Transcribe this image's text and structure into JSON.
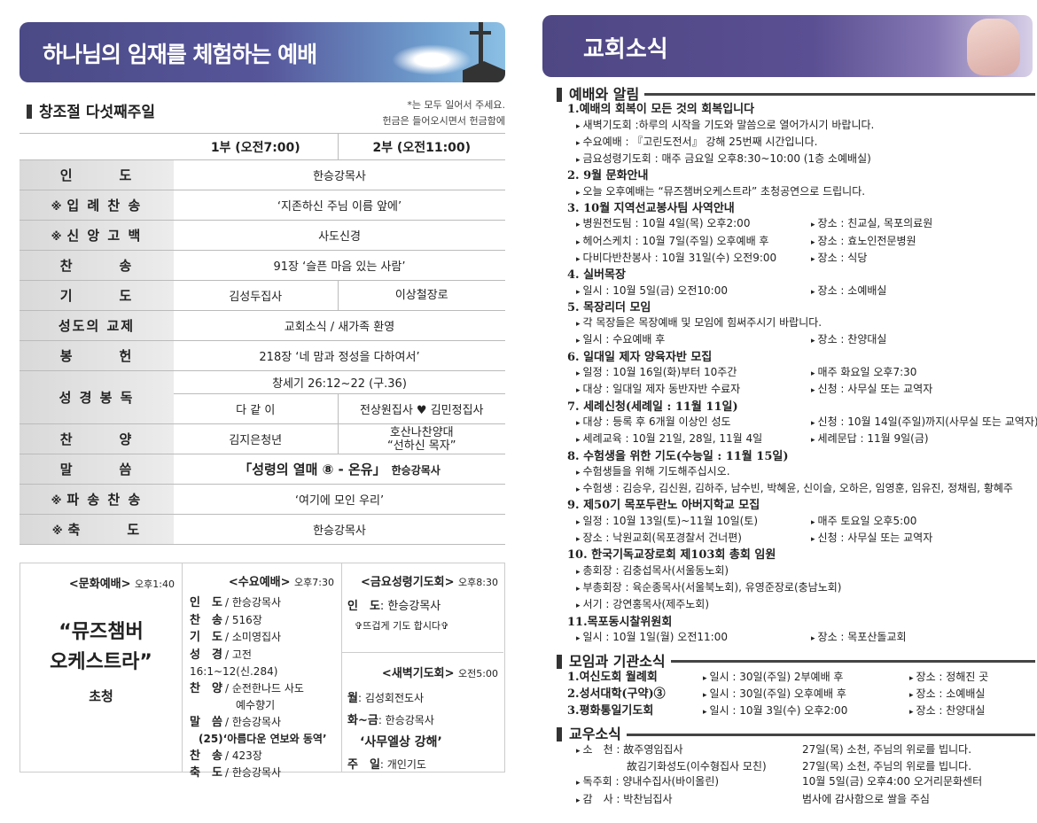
{
  "left": {
    "banner_title": "하나님의 임재를 체험하는 예배",
    "section_title": "창조절 다섯째주일",
    "notes": [
      "*는 모두 일어서 주세요.",
      "헌금은 들어오시면서 헌금함에"
    ],
    "service_headers": [
      "1부 (오전7:00)",
      "2부 (오전11:00)"
    ],
    "order": [
      {
        "mark": "",
        "label": "인　　　도",
        "value": "한승강목사"
      },
      {
        "mark": "※",
        "label": "입 례 찬 송",
        "value": "‘지존하신 주님 이름 앞에’"
      },
      {
        "mark": "※",
        "label": "신 앙 고 백",
        "value": "사도신경"
      },
      {
        "mark": "",
        "label": "찬　　　송",
        "value": "91장 ‘슬픈 마음 있는 사람’"
      },
      {
        "mark": "",
        "label": "기　　　도",
        "v1": "김성두집사",
        "v2": "이상철장로"
      },
      {
        "mark": "",
        "label": "성도의 교제",
        "value": "교회소식 / 새가족 환영"
      },
      {
        "mark": "",
        "label": "봉　　　헌",
        "value": "218장 ‘네 맘과 정성을 다하여서’"
      },
      {
        "mark": "",
        "label": "성 경 봉 독",
        "value": "창세기 26:12~22 (구.36)",
        "v1": "다 같 이",
        "v2": "전상원집사 ♥ 김민정집사"
      },
      {
        "mark": "",
        "label": "찬　　　양",
        "v1": "김지은청년",
        "v2": "호산나찬양대",
        "v2b": "“선하신 목자”"
      },
      {
        "mark": "",
        "label": "말　　　씀",
        "value": "「성령의 열매 ⑧ - 온유」",
        "preacher": "한승강목사"
      },
      {
        "mark": "※",
        "label": "파 송 찬 송",
        "value": "‘여기에 모인 우리’"
      },
      {
        "mark": "※",
        "label": "축　　　도",
        "value": "한승강목사"
      }
    ],
    "culture": {
      "title": "<문화예배>",
      "time": "오후1:40",
      "line1": "“뮤즈챔버",
      "line2": "오케스트라”",
      "invite": "초청"
    },
    "wednesday": {
      "title": "<수요예배>",
      "time": "오후7:30",
      "rows": [
        [
          "인　도",
          "/ 한승강목사"
        ],
        [
          "찬　송",
          "/ 516장"
        ],
        [
          "기　도",
          "/ 소미영집사"
        ],
        [
          "성　경",
          "/ 고전16:1~12(신.284)"
        ],
        [
          "찬　양",
          "/ 순전한나드 사도"
        ],
        [
          "",
          "　예수향기"
        ],
        [
          "말　씀",
          "/ 한승강목사"
        ],
        [
          "",
          "(25)‘아름다운 연보와 동역’"
        ],
        [
          "찬　송",
          "/ 423장"
        ],
        [
          "축　도",
          "/ 한승강목사"
        ]
      ]
    },
    "friday": {
      "title": "<금요성령기도회>",
      "time": "오후8:30",
      "leader_label": "인　도",
      "leader": ": 한승강목사",
      "note": "✞뜨겁게 기도 합시다✞"
    },
    "dawn": {
      "title": "<새벽기도회>",
      "time": "오전5:00",
      "rows": [
        [
          "월",
          ": 김성회전도사"
        ],
        [
          "화~금",
          ": 한승강목사"
        ],
        [
          "",
          "‘사무엘상 강해’"
        ],
        [
          "주　일",
          ": 개인기도"
        ]
      ]
    }
  },
  "right": {
    "banner_title": "교회소식",
    "sections": [
      {
        "title": "예배와 알림",
        "items": [
          {
            "h": "1.예배의 회복이 모든 것의 회복입니다",
            "b": [
              [
                "새벽기도회 :하루의 시작을 기도와 말씀으로 열어가시기 바랍니다."
              ],
              [
                "수요예배 : 『고린도전서』 강해 25번째 시간입니다."
              ],
              [
                "금요성령기도회 : 매주 금요일 오후8:30~10:00 (1층 소예배실)"
              ]
            ]
          },
          {
            "h": "2. 9월 문화안내",
            "b": [
              [
                "오늘 오후예배는 “뮤즈챔버오케스트라” 초청공연으로 드립니다."
              ]
            ]
          },
          {
            "h": "3. 10월 지역선교봉사팀 사역안내",
            "b": [
              [
                "병원전도팀 : 10월 4일(목) 오후2:00",
                "장소 : 친교실, 목포의료원"
              ],
              [
                "헤어스케치 : 10월 7일(주일) 오후예배 후",
                "장소 : 효노인전문병원"
              ],
              [
                "다비다반찬봉사 : 10월 31일(수) 오전9:00",
                "장소 : 식당"
              ]
            ]
          },
          {
            "h": "4. 실버목장",
            "b": [
              [
                "일시 : 10월 5일(금) 오전10:00",
                "장소 : 소예배실"
              ]
            ]
          },
          {
            "h": "5. 목장리더 모임",
            "b": [
              [
                "각 목장들은 목장예배 및 모임에 힘써주시기 바랍니다."
              ],
              [
                "일시 : 수요예배 후",
                "장소 : 찬양대실"
              ]
            ]
          },
          {
            "h": "6. 일대일 제자 양육자반 모집",
            "b": [
              [
                "일정 : 10월 16일(화)부터 10주간",
                "매주 화요일 오후7:30"
              ],
              [
                "대상 : 일대일 제자 동반자반 수료자",
                "신청 : 사무실 또는 교역자"
              ]
            ]
          },
          {
            "h": "7. 세례신청(세례일 : 11월 11일)",
            "b": [
              [
                "대상 : 등록 후 6개월 이상인 성도",
                "신청 : 10월 14일(주일)까지(사무실 또는 교역자)"
              ],
              [
                "세례교육 : 10월 21일, 28일, 11월 4일",
                "세례문답 : 11월 9일(금)"
              ]
            ]
          },
          {
            "h": "8. 수험생을 위한 기도(수능일 : 11월 15일)",
            "b": [
              [
                "수험생들을 위해 기도해주십시오."
              ],
              [
                "수험생 : 김승우, 김신원, 김하주, 남수빈, 박혜윤, 신이슬, 오하은, 임영훈, 임유진, 정채림, 황혜주"
              ]
            ]
          },
          {
            "h": "9. 제50기 목포두란노 아버지학교 모집",
            "b": [
              [
                "일정 : 10월 13일(토)~11월 10일(토)",
                "매주 토요일 오후5:00"
              ],
              [
                "장소 : 낙원교회(목포경찰서 건너편)",
                "신청 : 사무실 또는 교역자"
              ]
            ]
          },
          {
            "h": "10. 한국기독교장로회 제103회 총회 임원",
            "b": [
              [
                "총회장 : 김충섭목사(서울동노회)"
              ],
              [
                "부총회장 : 육순종목사(서울북노회), 유영준장로(충남노회)"
              ],
              [
                "서기 : 강연홍목사(제주노회)"
              ]
            ]
          },
          {
            "h": "11.목포동시찰위원회",
            "b": [
              [
                "일시 : 10월 1일(월) 오전11:00",
                "장소 : 목포산돌교회"
              ]
            ]
          }
        ]
      },
      {
        "title": "모임과 기관소식",
        "rows": [
          [
            "1.여신도회 월례회",
            "일시 : 30일(주일) 2부예배 후",
            "장소 : 정해진 곳"
          ],
          [
            "2.성서대학(구약)③",
            "일시 : 30일(주일) 오후예배 후",
            "장소 : 소예배실"
          ],
          [
            "3.평화통일기도회",
            "일시 : 10월 3일(수) 오후2:00",
            "장소 : 찬양대실"
          ]
        ]
      },
      {
        "title": "교우소식",
        "rows": [
          [
            "소　천 : 故주영임집사",
            "27일(목) 소천, 주님의 위로를 빕니다."
          ],
          [
            "　　　　故김기화성도(이수형집사 모친)",
            "27일(목) 소천, 주님의 위로를 빕니다."
          ],
          [
            "독주회 : 양내수집사(바이올린)",
            "10월 5일(금) 오후4:00 오거리문화센터"
          ],
          [
            "감　사 : 박찬님집사",
            "범사에 감사함으로 쌀을 주심"
          ]
        ]
      }
    ]
  }
}
